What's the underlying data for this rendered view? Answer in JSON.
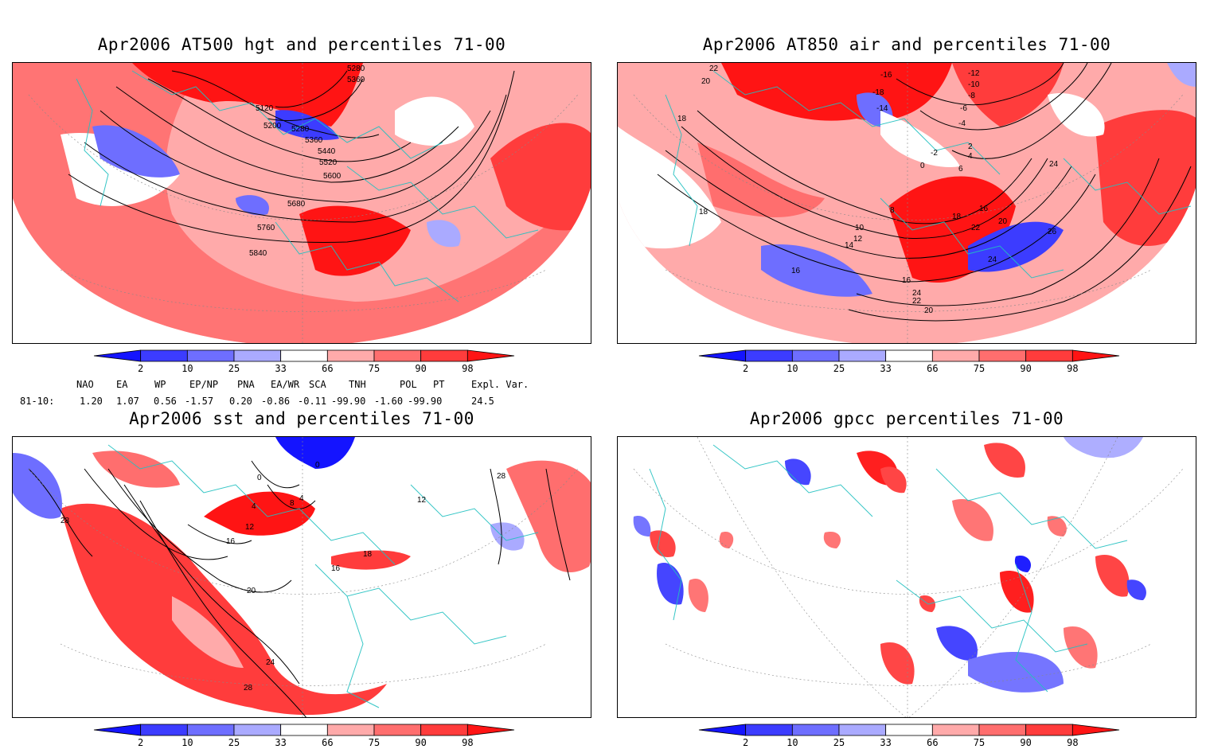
{
  "panels": [
    {
      "title": "Apr2006 AT500 hgt and percentiles 71-00",
      "contour_labels": [
        "5280",
        "5360",
        "5120",
        "5200",
        "5280",
        "5360",
        "5440",
        "5520",
        "5600",
        "5680",
        "5760",
        "5840"
      ]
    },
    {
      "title": "Apr2006 AT850 air and percentiles 71-00",
      "contour_labels": [
        "22",
        "20",
        "18",
        "-16",
        "-18",
        "-14",
        "-12",
        "-10",
        "-8",
        "-6",
        "-4",
        "-2",
        "0",
        "2",
        "4",
        "6",
        "8",
        "10",
        "12",
        "14",
        "16",
        "18",
        "20",
        "22",
        "24",
        "26",
        "24",
        "22",
        "20",
        "16",
        "18",
        "16",
        "24"
      ]
    },
    {
      "title": "Apr2006 sst and percentiles 71-00",
      "contour_labels": [
        "28",
        "0",
        "0",
        "4",
        "4",
        "8",
        "12",
        "16",
        "16",
        "20",
        "24",
        "28",
        "12",
        "28",
        "18"
      ]
    },
    {
      "title": "Apr2006 gpcc percentiles 71-00",
      "contour_labels": []
    }
  ],
  "colorbar": {
    "ticks": [
      "2",
      "10",
      "25",
      "33",
      "66",
      "75",
      "90",
      "98"
    ],
    "colors": [
      "#1414ff",
      "#3c3cff",
      "#6e6eff",
      "#aaaaff",
      "#ffffff",
      "#ffaaaa",
      "#ff6e6e",
      "#ff3c3c",
      "#ff1414"
    ]
  },
  "indices": {
    "headers": [
      "NAO",
      "EA",
      "WP",
      "EP/NP",
      "PNA",
      "EA/WR",
      "SCA",
      "TNH",
      "POL",
      "PT",
      "Expl. Var."
    ],
    "row_label": "81-10:",
    "values": [
      "1.20",
      "1.07",
      "0.56",
      "-1.57",
      "0.20",
      "-0.86",
      "-0.11",
      "-99.90",
      "-1.60",
      "-99.90",
      "24.5"
    ]
  }
}
